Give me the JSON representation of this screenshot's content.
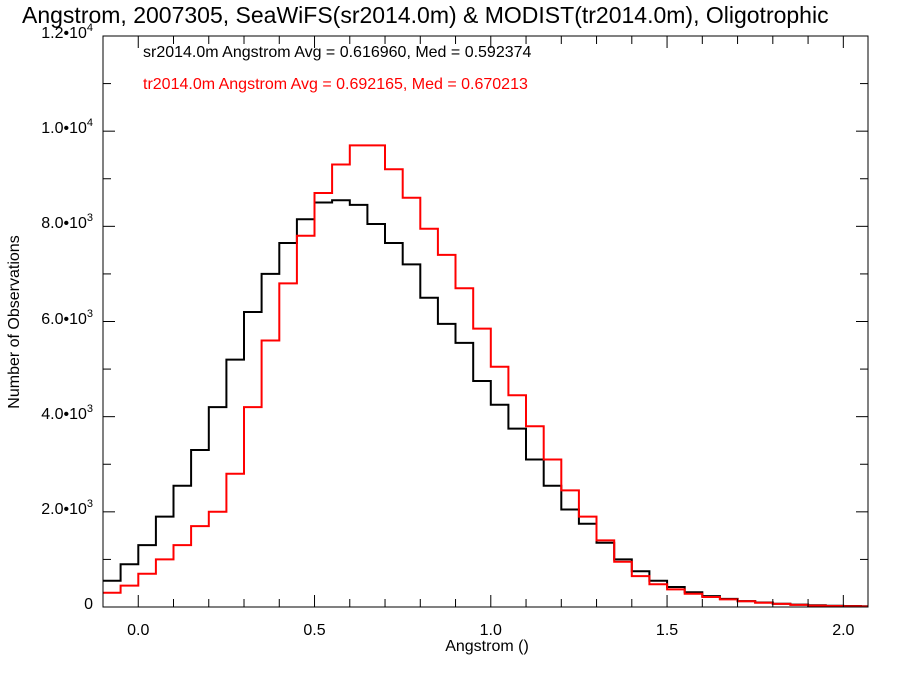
{
  "title": "Angstrom, 2007305, SeaWiFS(sr2014.0m) & MODIST(tr2014.0m), Oligotrophic",
  "stats": [
    {
      "text": "sr2014.0m Angstrom Avg = 0.616960, Med = 0.592374",
      "color": "#000000"
    },
    {
      "text": "tr2014.0m Angstrom Avg = 0.692165, Med = 0.670213",
      "color": "#ff0000"
    }
  ],
  "chart_data": {
    "type": "line",
    "style": "step histogram",
    "title": "Angstrom, 2007305, SeaWiFS(sr2014.0m) & MODIST(tr2014.0m), Oligotrophic",
    "xlabel": "Angstrom ()",
    "ylabel": "Number of Observations",
    "xlim": [
      -0.1,
      2.07
    ],
    "ylim": [
      0,
      12000
    ],
    "x_ticks": [
      "0.0",
      "0.5",
      "1.0",
      "1.5",
      "2.0"
    ],
    "y_ticks": [
      {
        "base": "0",
        "exp": ""
      },
      {
        "base": "2.0•10",
        "exp": "3"
      },
      {
        "base": "4.0•10",
        "exp": "3"
      },
      {
        "base": "6.0•10",
        "exp": "3"
      },
      {
        "base": "8.0•10",
        "exp": "3"
      },
      {
        "base": "1.0•10",
        "exp": "4"
      },
      {
        "base": "1.2•10",
        "exp": "4"
      }
    ],
    "grid": false,
    "series": [
      {
        "name": "sr2014.0m",
        "color": "#000000",
        "x": [
          -0.1,
          -0.05,
          0.0,
          0.05,
          0.1,
          0.15,
          0.2,
          0.25,
          0.3,
          0.35,
          0.4,
          0.45,
          0.5,
          0.55,
          0.6,
          0.65,
          0.7,
          0.75,
          0.8,
          0.85,
          0.9,
          0.95,
          1.0,
          1.05,
          1.1,
          1.15,
          1.2,
          1.25,
          1.3,
          1.35,
          1.4,
          1.45,
          1.5,
          1.55,
          1.6,
          1.65,
          1.7,
          1.75,
          1.8,
          1.85,
          1.9,
          1.95,
          2.0,
          2.05
        ],
        "y": [
          550,
          900,
          1300,
          1900,
          2550,
          3300,
          4200,
          5200,
          6200,
          7000,
          7650,
          8150,
          8500,
          8550,
          8450,
          8050,
          7650,
          7200,
          6500,
          5950,
          5550,
          4750,
          4250,
          3750,
          3100,
          2550,
          2050,
          1750,
          1350,
          1000,
          750,
          550,
          420,
          310,
          230,
          170,
          125,
          95,
          70,
          50,
          35,
          25,
          20,
          15
        ]
      },
      {
        "name": "tr2014.0m",
        "color": "#ff0000",
        "x": [
          -0.1,
          -0.05,
          0.0,
          0.05,
          0.1,
          0.15,
          0.2,
          0.25,
          0.3,
          0.35,
          0.4,
          0.45,
          0.5,
          0.55,
          0.6,
          0.65,
          0.7,
          0.75,
          0.8,
          0.85,
          0.9,
          0.95,
          1.0,
          1.05,
          1.1,
          1.15,
          1.2,
          1.25,
          1.3,
          1.35,
          1.4,
          1.45,
          1.5,
          1.55,
          1.6,
          1.65,
          1.7,
          1.75,
          1.8,
          1.85,
          1.9,
          1.95,
          2.0,
          2.05
        ],
        "y": [
          300,
          450,
          700,
          1000,
          1300,
          1700,
          2000,
          2800,
          4200,
          5600,
          6800,
          7800,
          8700,
          9300,
          9700,
          9700,
          9200,
          8600,
          7950,
          7400,
          6700,
          5850,
          5050,
          4450,
          3800,
          3100,
          2450,
          1900,
          1400,
          950,
          650,
          480,
          370,
          280,
          210,
          160,
          120,
          90,
          65,
          45,
          30,
          22,
          15,
          10
        ]
      }
    ]
  }
}
